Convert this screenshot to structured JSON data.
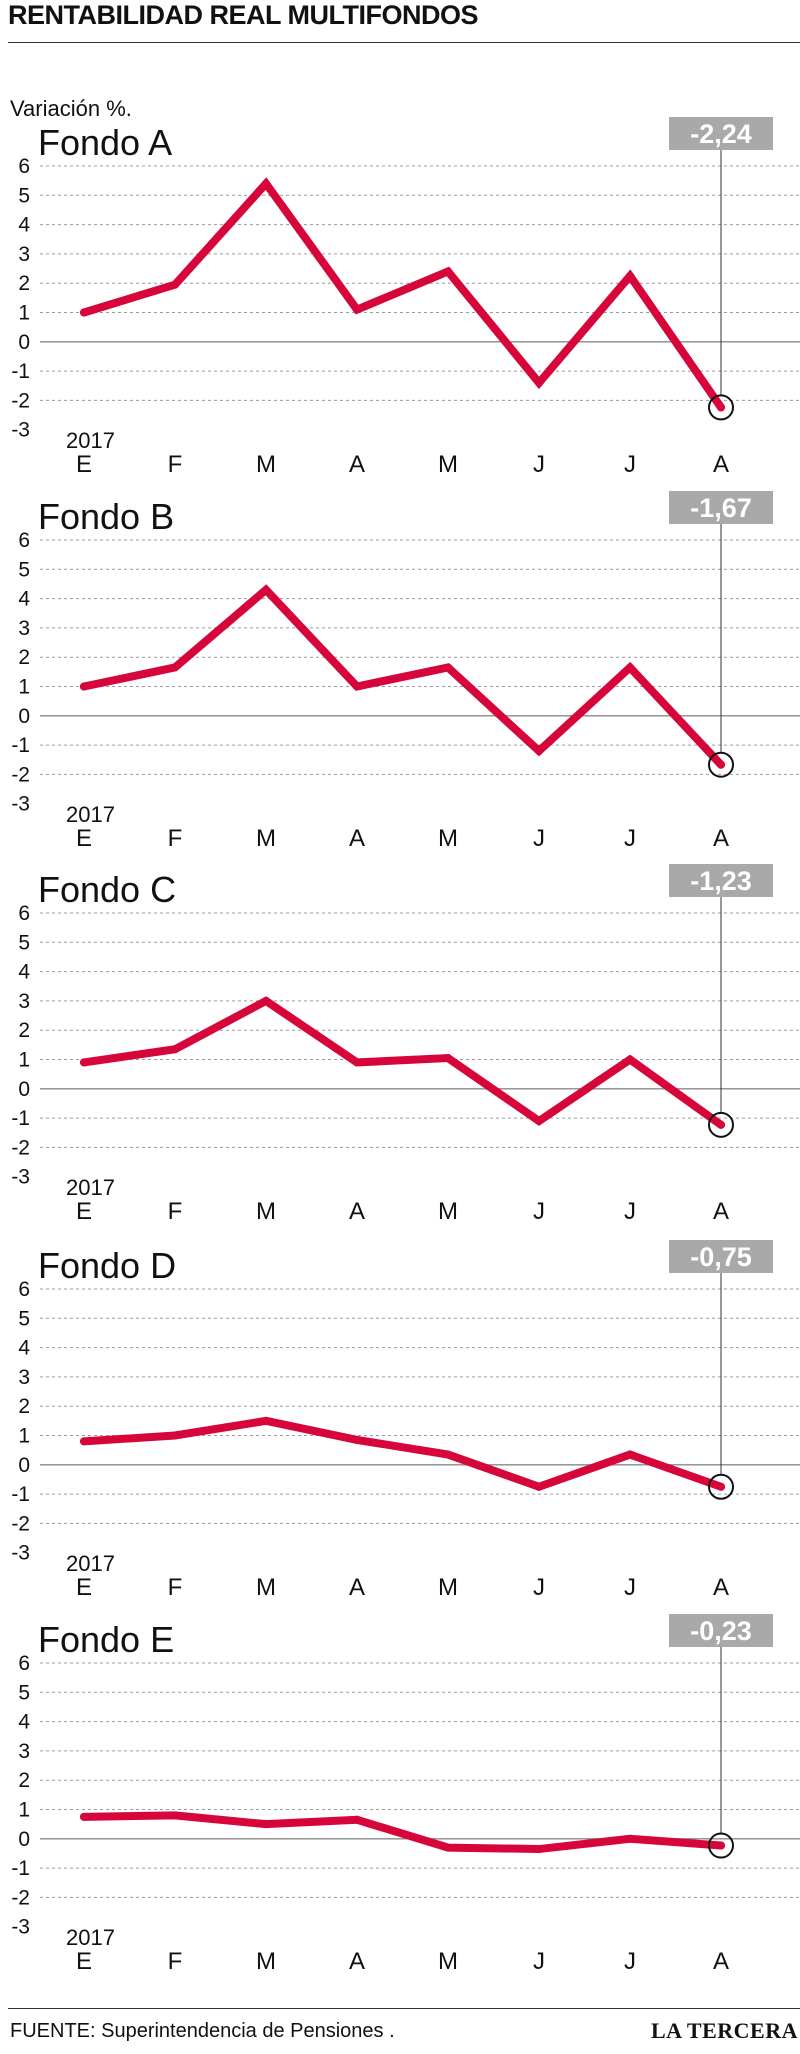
{
  "title": "RENTABILIDAD REAL MULTIFONDOS",
  "subtitle": "Variación %.",
  "source": "FUENTE: Superintendencia de Pensiones .",
  "brand": "LA TERCERA",
  "colors": {
    "line": "#d7063a",
    "callout_bg": "#a9a9a9",
    "grid": "#9a9a9a"
  },
  "chart_data": [
    {
      "type": "line",
      "title": "Fondo A",
      "year_label": "2017",
      "categories": [
        "E",
        "F",
        "M",
        "A",
        "M",
        "J",
        "J",
        "A"
      ],
      "values": [
        1.0,
        1.95,
        5.4,
        1.1,
        2.4,
        -1.4,
        2.25,
        -2.24
      ],
      "ylim": [
        -3,
        6
      ],
      "yticks": [
        6,
        5,
        4,
        3,
        2,
        1,
        0,
        -1,
        -2,
        -3
      ],
      "callout": "-2,24",
      "grid": true
    },
    {
      "type": "line",
      "title": "Fondo B",
      "year_label": "2017",
      "categories": [
        "E",
        "F",
        "M",
        "A",
        "M",
        "J",
        "J",
        "A"
      ],
      "values": [
        1.0,
        1.65,
        4.3,
        1.0,
        1.65,
        -1.2,
        1.65,
        -1.67
      ],
      "ylim": [
        -3,
        6
      ],
      "yticks": [
        6,
        5,
        4,
        3,
        2,
        1,
        0,
        -1,
        -2,
        -3
      ],
      "callout": "-1,67",
      "grid": true
    },
    {
      "type": "line",
      "title": "Fondo C",
      "year_label": "2017",
      "categories": [
        "E",
        "F",
        "M",
        "A",
        "M",
        "J",
        "J",
        "A"
      ],
      "values": [
        0.9,
        1.35,
        3.0,
        0.9,
        1.05,
        -1.1,
        1.0,
        -1.23
      ],
      "ylim": [
        -3,
        6
      ],
      "yticks": [
        6,
        5,
        4,
        3,
        2,
        1,
        0,
        -1,
        -2,
        -3
      ],
      "callout": "-1,23",
      "grid": true
    },
    {
      "type": "line",
      "title": "Fondo D",
      "year_label": "2017",
      "categories": [
        "E",
        "F",
        "M",
        "A",
        "M",
        "J",
        "J",
        "A"
      ],
      "values": [
        0.8,
        1.0,
        1.5,
        0.85,
        0.35,
        -0.75,
        0.35,
        -0.75
      ],
      "ylim": [
        -3,
        6
      ],
      "yticks": [
        6,
        5,
        4,
        3,
        2,
        1,
        0,
        -1,
        -2,
        -3
      ],
      "callout": "-0,75",
      "grid": true
    },
    {
      "type": "line",
      "title": "Fondo E",
      "year_label": "2017",
      "categories": [
        "E",
        "F",
        "M",
        "A",
        "M",
        "J",
        "J",
        "A"
      ],
      "values": [
        0.75,
        0.8,
        0.5,
        0.65,
        -0.3,
        -0.35,
        0.0,
        -0.23
      ],
      "ylim": [
        -3,
        6
      ],
      "yticks": [
        6,
        5,
        4,
        3,
        2,
        1,
        0,
        -1,
        -2,
        -3
      ],
      "callout": "-0,23",
      "grid": true
    }
  ]
}
